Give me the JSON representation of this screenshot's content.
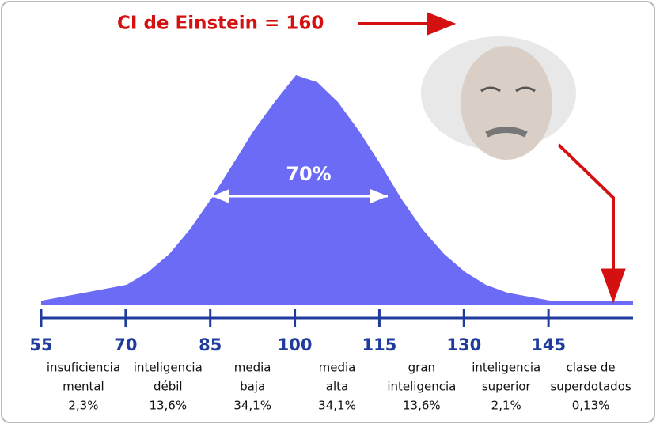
{
  "chart_data": {
    "type": "area",
    "title": "CI de Einstein = 160",
    "annotation": "70%",
    "xlim": [
      55,
      160
    ],
    "xticks": [
      55,
      70,
      85,
      100,
      115,
      130,
      145
    ],
    "categories": [
      [
        "insuficiencia",
        "mental"
      ],
      [
        "inteligencia",
        "débil"
      ],
      [
        "media",
        "baja"
      ],
      [
        "media",
        "alta"
      ],
      [
        "gran",
        "inteligencia"
      ],
      [
        "inteligencia",
        "superior"
      ],
      [
        "clase de",
        "superdotados"
      ]
    ],
    "values": [
      2.3,
      13.6,
      34.1,
      34.1,
      13.6,
      2.1,
      0.13
    ],
    "value_labels": [
      "2,3%",
      "13,6%",
      "34,1%",
      "34,1%",
      "13,6%",
      "2,1%",
      "0,13%"
    ],
    "color": "#6b6bf5",
    "axis_color": "#1f3c9c",
    "accent_color": "#d41010"
  }
}
